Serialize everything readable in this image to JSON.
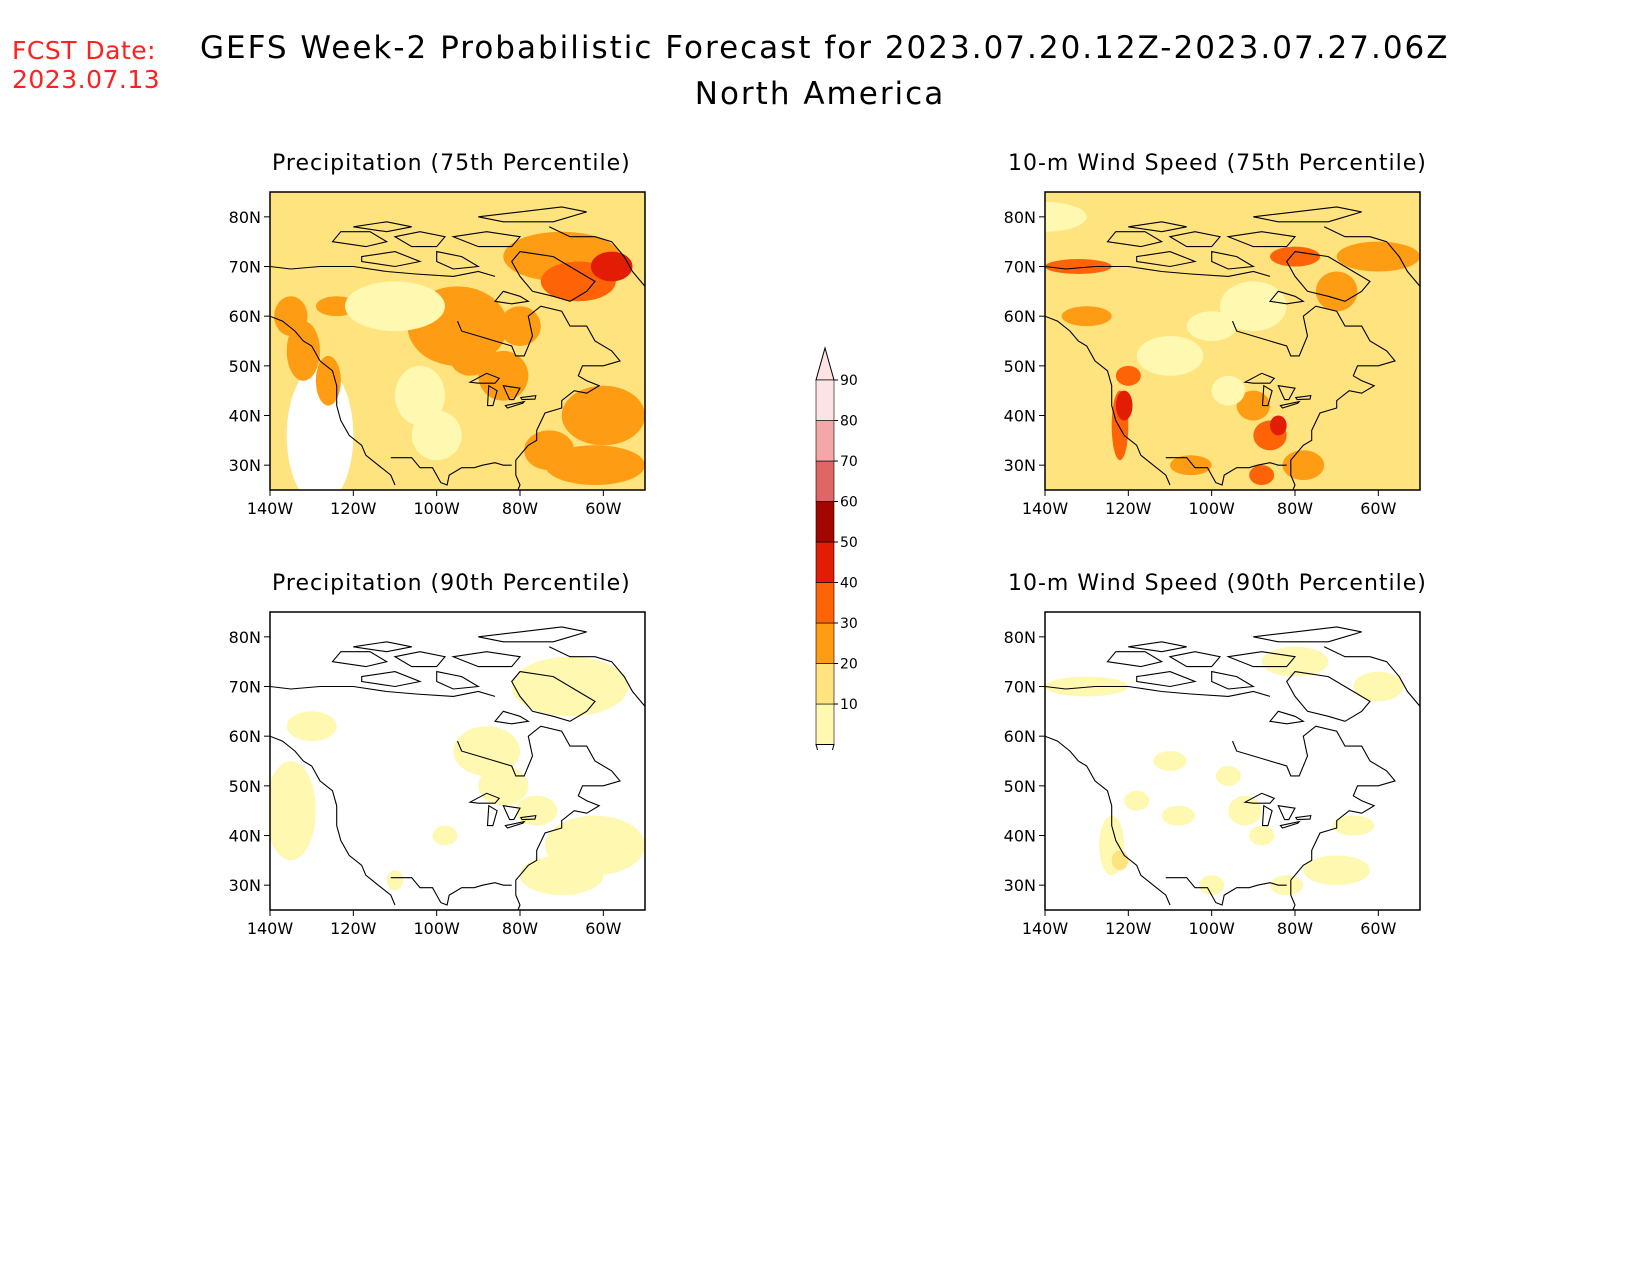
{
  "header": {
    "fcst_label": "FCST Date:",
    "fcst_date": "2023.07.13",
    "title": "GEFS Week-2 Probabilistic Forecast for 2023.07.20.12Z-2023.07.27.06Z",
    "subtitle": "North America"
  },
  "axes": {
    "lat_labels": [
      "80N",
      "70N",
      "60N",
      "50N",
      "40N",
      "30N"
    ],
    "lon_labels": [
      "140W",
      "120W",
      "100W",
      "80W",
      "60W"
    ]
  },
  "panels": [
    {
      "title": "Precipitation (75th Percentile)"
    },
    {
      "title": "10-m Wind Speed (75th Percentile)"
    },
    {
      "title": "Precipitation (90th Percentile)"
    },
    {
      "title": "10-m Wind Speed (90th Percentile)"
    }
  ],
  "colorbar": {
    "labels": [
      "10",
      "20",
      "30",
      "40",
      "50",
      "60",
      "70",
      "80",
      "90"
    ],
    "colors": [
      "#fff8b0",
      "#fee37f",
      "#fe9c13",
      "#fe6407",
      "#e31c06",
      "#a30500",
      "#de6665",
      "#f3a7a6",
      "#fde3e3"
    ]
  },
  "map_extent": {
    "lon": [
      -140,
      -50
    ],
    "lat": [
      25,
      85
    ]
  }
}
